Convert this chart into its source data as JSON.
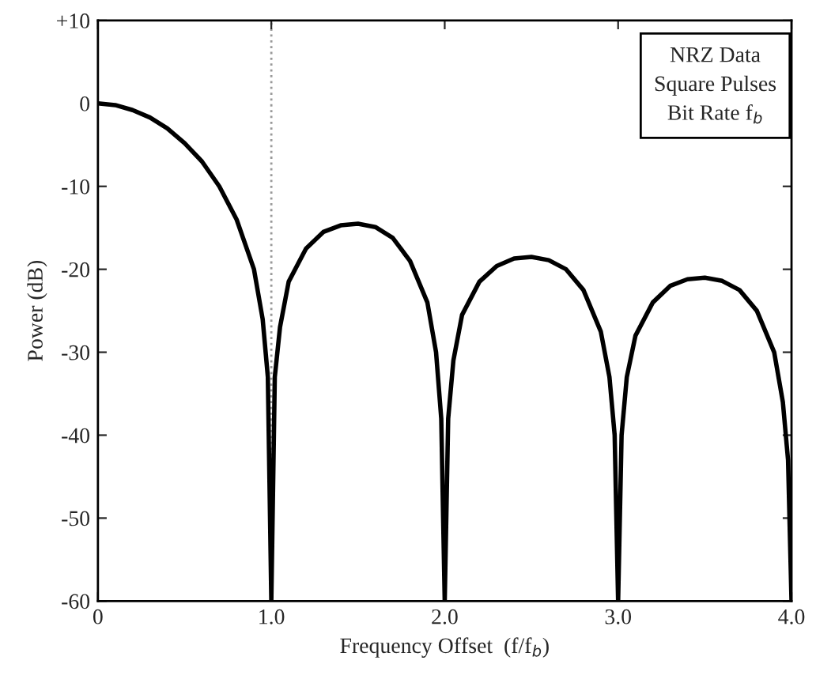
{
  "chart_data": {
    "type": "line",
    "xlabel": "Frequency Offset  (f/f$_{b}$)",
    "ylabel": "Power (dB)",
    "x": [
      0,
      0.1,
      0.2,
      0.3,
      0.4,
      0.5,
      0.6,
      0.7,
      0.8,
      0.9,
      0.95,
      0.98,
      1.0,
      1.02,
      1.05,
      1.1,
      1.2,
      1.3,
      1.4,
      1.5,
      1.6,
      1.7,
      1.8,
      1.9,
      1.95,
      1.98,
      2.0,
      2.02,
      2.05,
      2.1,
      2.2,
      2.3,
      2.4,
      2.5,
      2.6,
      2.7,
      2.8,
      2.9,
      2.95,
      2.98,
      3.0,
      3.02,
      3.05,
      3.1,
      3.2,
      3.3,
      3.4,
      3.5,
      3.6,
      3.7,
      3.8,
      3.9,
      3.95,
      3.98,
      4.0
    ],
    "series": [
      {
        "color": "#000000",
        "values": [
          0,
          -0.2,
          -0.8,
          -1.7,
          -3,
          -4.8,
          -7,
          -10,
          -14,
          -20,
          -26,
          -33,
          -60,
          -33,
          -27,
          -21.5,
          -17.5,
          -15.5,
          -14.7,
          -14.5,
          -14.9,
          -16.2,
          -19,
          -24,
          -30,
          -38,
          -60,
          -38,
          -31,
          -25.5,
          -21.5,
          -19.6,
          -18.7,
          -18.5,
          -18.9,
          -20,
          -22.5,
          -27.5,
          -33,
          -40,
          -60,
          -40,
          -33,
          -28,
          -24,
          -22,
          -21.2,
          -21,
          -21.4,
          -22.5,
          -25,
          -30,
          -36,
          -43,
          -60
        ]
      }
    ],
    "xlim": [
      0,
      4.0
    ],
    "xticks": [
      {
        "value": 0,
        "label": "0"
      },
      {
        "value": 1,
        "label": "1.0"
      },
      {
        "value": 2,
        "label": "2.0"
      },
      {
        "value": 3,
        "label": "3.0"
      },
      {
        "value": 4,
        "label": "4.0"
      }
    ],
    "ylim": [
      -60,
      10
    ],
    "yticks": [
      {
        "value": -60,
        "label": "-60"
      },
      {
        "value": -50,
        "label": "-50"
      },
      {
        "value": -40,
        "label": "-40"
      },
      {
        "value": -30,
        "label": "-30"
      },
      {
        "value": -20,
        "label": "-20"
      },
      {
        "value": -10,
        "label": "-10"
      },
      {
        "value": 0,
        "label": "0"
      },
      {
        "value": 10,
        "label": "+10"
      }
    ],
    "ref_lines": [
      {
        "axis": "x",
        "value": 1.0,
        "color": "#999999",
        "line_style": "dotted"
      }
    ],
    "annotations": [
      "NRZ Data\nSquare Pulses\nBit Rate f$_{b}$"
    ],
    "grid": false,
    "legend": false,
    "line_style": "solid",
    "marker": "none"
  }
}
